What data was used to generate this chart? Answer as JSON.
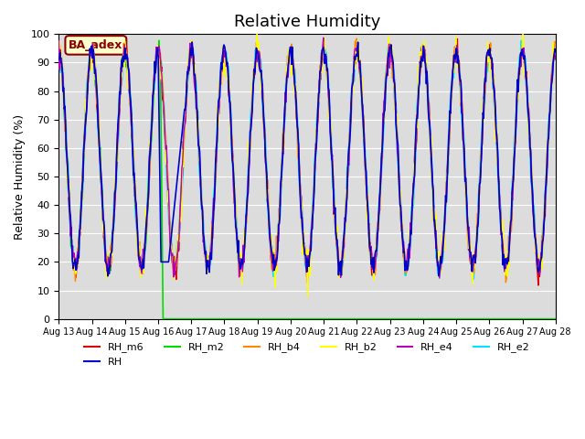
{
  "title": "Relative Humidity",
  "ylabel": "Relative Humidity (%)",
  "ylim": [
    0,
    100
  ],
  "background_color": "#dcdcdc",
  "annotation_text": "BA_adex",
  "annotation_color": "#8b0000",
  "annotation_bg": "#ffffcc",
  "series": {
    "RH_e2": {
      "color": "#00e5ff",
      "zorder": 2,
      "lw": 1.8
    },
    "RH_m2": {
      "color": "#00dd00",
      "zorder": 3,
      "lw": 1.2
    },
    "RH_m6": {
      "color": "#dd0000",
      "zorder": 5,
      "lw": 1.0
    },
    "RH_b4": {
      "color": "#ff8800",
      "zorder": 6,
      "lw": 1.0
    },
    "RH_b2": {
      "color": "#ffff00",
      "zorder": 7,
      "lw": 1.0
    },
    "RH_e4": {
      "color": "#bb00bb",
      "zorder": 8,
      "lw": 1.0
    },
    "RH": {
      "color": "#0000cc",
      "zorder": 9,
      "lw": 1.2
    }
  },
  "xtick_labels": [
    "Aug 13",
    "Aug 14",
    "Aug 15",
    "Aug 16",
    "Aug 17",
    "Aug 18",
    "Aug 19",
    "Aug 20",
    "Aug 21",
    "Aug 22",
    "Aug 23",
    "Aug 24",
    "Aug 25",
    "Aug 26",
    "Aug 27",
    "Aug 28"
  ],
  "ytick_labels": [
    "0",
    "10",
    "20",
    "30",
    "40",
    "50",
    "60",
    "70",
    "80",
    "90",
    "100"
  ]
}
